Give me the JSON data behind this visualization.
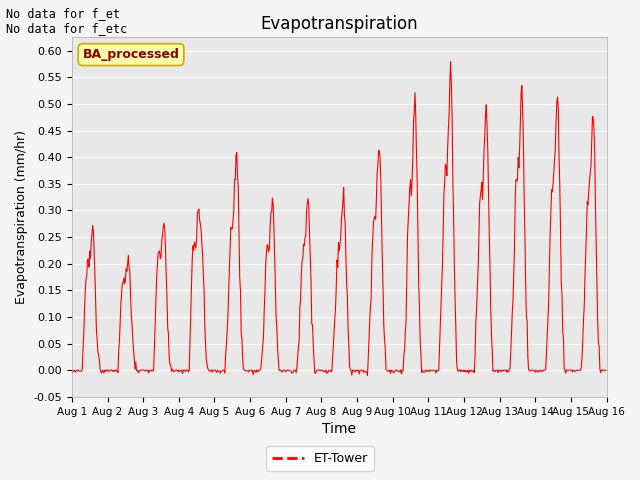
{
  "title": "Evapotranspiration",
  "xlabel": "Time",
  "ylabel": "Evapotranspiration (mm/hr)",
  "ylim": [
    -0.05,
    0.625
  ],
  "yticks": [
    -0.05,
    0.0,
    0.05,
    0.1,
    0.15,
    0.2,
    0.25,
    0.3,
    0.35,
    0.4,
    0.45,
    0.5,
    0.55,
    0.6
  ],
  "bg_color": "#e8e8e8",
  "line_color": "red",
  "legend_label": "ET-Tower",
  "no_data_text1": "No data for f_et",
  "no_data_text2": "No data for f_etc",
  "ba_processed_text": "BA_processed",
  "figsize": [
    6.4,
    4.8
  ],
  "dpi": 100
}
